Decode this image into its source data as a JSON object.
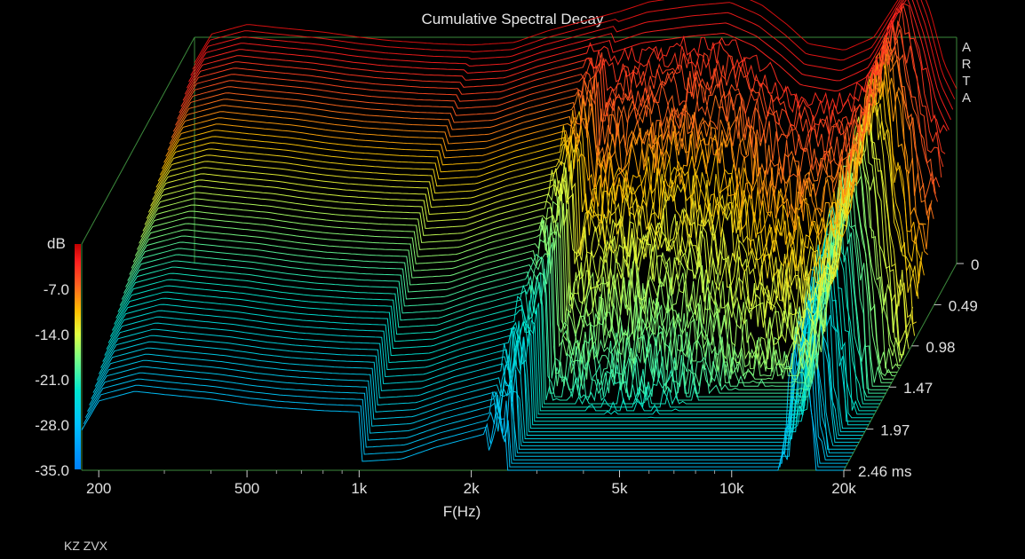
{
  "chart_data": {
    "type": "waterfall",
    "title": "Cumulative Spectral Decay",
    "watermark": [
      "A",
      "R",
      "T",
      "A"
    ],
    "caption": "KZ ZVX",
    "xlabel": "F(Hz)",
    "x_scale": "log",
    "xlim": [
      180,
      20000
    ],
    "x_ticks": [
      {
        "value": 200,
        "label": "200"
      },
      {
        "value": 500,
        "label": "500"
      },
      {
        "value": 1000,
        "label": "1k"
      },
      {
        "value": 2000,
        "label": "2k"
      },
      {
        "value": 5000,
        "label": "5k"
      },
      {
        "value": 10000,
        "label": "10k"
      },
      {
        "value": 20000,
        "label": "20k"
      }
    ],
    "zlabel": "dB",
    "zlim": [
      -35,
      0
    ],
    "z_ticks": [
      {
        "value": -7,
        "label": "-7.0"
      },
      {
        "value": -14,
        "label": "-14.0"
      },
      {
        "value": -21,
        "label": "-21.0"
      },
      {
        "value": -28,
        "label": "-28.0"
      },
      {
        "value": -35,
        "label": "-35.0"
      }
    ],
    "time_unit": "ms",
    "tlim": [
      0,
      2.46
    ],
    "t_ticks": [
      {
        "value": 0,
        "label": "0"
      },
      {
        "value": 0.49,
        "label": "0.49"
      },
      {
        "value": 0.98,
        "label": "0.98"
      },
      {
        "value": 1.47,
        "label": "1.47"
      },
      {
        "value": 1.97,
        "label": "1.97"
      },
      {
        "value": 2.46,
        "label": "2.46 ms"
      }
    ],
    "slices": 60,
    "frequencies_hz": [
      180,
      200,
      250,
      300,
      400,
      500,
      600,
      800,
      1000,
      1300,
      1600,
      2000,
      2500,
      3000,
      4000,
      5000,
      6000,
      7000,
      8000,
      10000,
      12000,
      14000,
      15500,
      17000,
      18500,
      20000
    ],
    "initial_response_db": [
      -4,
      0.5,
      2,
      1.5,
      0.8,
      0,
      -0.5,
      -1,
      -1.2,
      -0.8,
      1,
      2.5,
      4,
      5.5,
      6.5,
      7,
      5,
      2,
      -1,
      -2,
      0,
      6,
      10,
      4,
      -4,
      -8
    ],
    "colormap": [
      "#0080ff",
      "#00c0ff",
      "#00e6d0",
      "#80ff80",
      "#e0ff40",
      "#ffc000",
      "#ff6020",
      "#ff2020",
      "#c00000"
    ]
  }
}
